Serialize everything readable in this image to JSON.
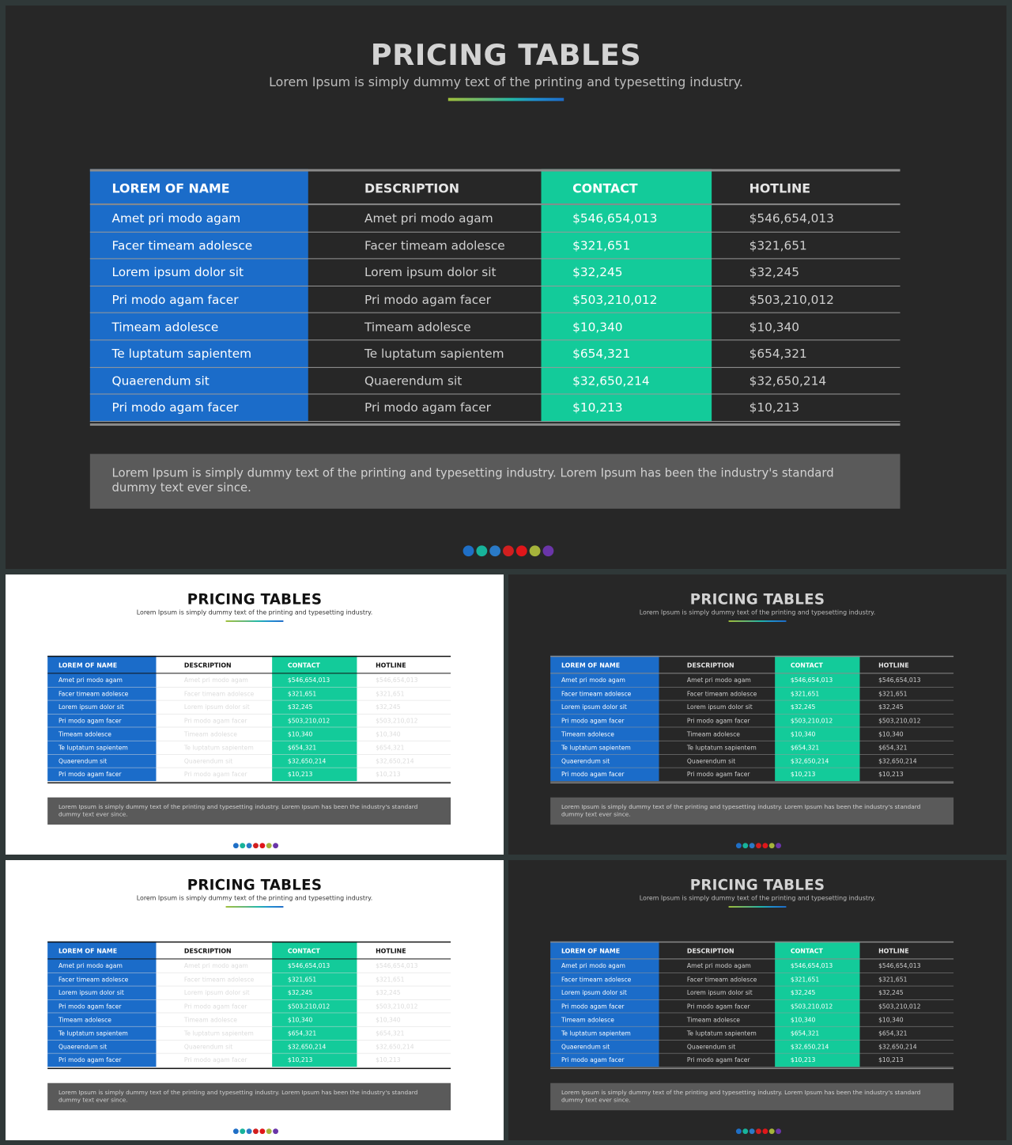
{
  "title": "PRICING TABLES",
  "subtitle": "Lorem Ipsum is simply dummy text of the printing and typesetting industry.",
  "table": {
    "headers": [
      "LOREM OF NAME",
      "DESCRIPTION",
      "CONTACT",
      "HOTLINE"
    ],
    "rows": [
      [
        "Amet pri modo agam",
        "Amet pri modo agam",
        "$546,654,013",
        "$546,654,013"
      ],
      [
        "Facer timeam  adolesce",
        "Facer timeam  adolesce",
        "$321,651",
        "$321,651"
      ],
      [
        "Lorem ipsum dolor sit",
        "Lorem ipsum dolor sit",
        "$32,245",
        "$32,245"
      ],
      [
        "Pri modo agam facer",
        "Pri modo agam facer",
        "$503,210,012",
        "$503,210,012"
      ],
      [
        "Timeam adolesce",
        "Timeam adolesce",
        "$10,340",
        "$10,340"
      ],
      [
        "Te luptatum sapientem",
        "Te luptatum sapientem",
        "$654,321",
        "$654,321"
      ],
      [
        "Quaerendum sit",
        "Quaerendum sit",
        "$32,650,214",
        "$32,650,214"
      ],
      [
        "Pri modo agam facer",
        "Pri modo agam facer",
        "$10,213",
        "$10,213"
      ]
    ]
  },
  "note": "Lorem Ipsum is simply dummy text of the printing and typesetting industry. Lorem Ipsum has been the industry's standard dummy text ever since.",
  "colors": {
    "name_column": "#1b6cc9",
    "contact_column": "#13cb9a",
    "note_background": "#5a5a5a",
    "dots": [
      "#1f6fc6",
      "#17b39a",
      "#2a7ac7",
      "#d11f1f",
      "#e0161a",
      "#a5b33b",
      "#6a35a8"
    ]
  },
  "slides": [
    {
      "id": "main",
      "theme": "dark"
    },
    {
      "id": "thumb-1",
      "theme": "light"
    },
    {
      "id": "thumb-2",
      "theme": "dark"
    },
    {
      "id": "thumb-3",
      "theme": "light"
    },
    {
      "id": "thumb-4",
      "theme": "dark"
    }
  ]
}
